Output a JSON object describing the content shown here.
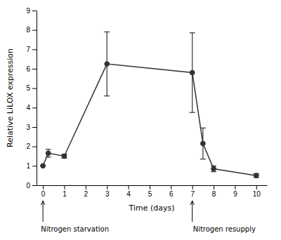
{
  "chart_data": {
    "type": "line",
    "xlabel": "Time (days)",
    "ylabel": "Relative LiLOX expression",
    "x": [
      0,
      0.25,
      1,
      3,
      7,
      7.5,
      8,
      10
    ],
    "values": [
      1.0,
      1.65,
      1.5,
      6.25,
      5.8,
      2.15,
      0.85,
      0.5
    ],
    "errors": [
      0.0,
      0.2,
      0.1,
      1.65,
      2.05,
      0.8,
      0.15,
      0.1
    ],
    "color": "#333333",
    "marker": "circle",
    "xlim": [
      -0.3,
      10.5
    ],
    "ylim": [
      0,
      9
    ],
    "xticks": [
      0,
      1,
      2,
      3,
      4,
      5,
      6,
      7,
      8,
      9,
      10
    ],
    "yticks": [
      0,
      1,
      2,
      3,
      4,
      5,
      6,
      7,
      8,
      9
    ],
    "annotations": [
      {
        "text": "Nitrogen starvation",
        "x": 1.5,
        "arrow_x": 0
      },
      {
        "text": "Nitrogen resupply",
        "x": 8.5,
        "arrow_x": 7
      }
    ]
  }
}
